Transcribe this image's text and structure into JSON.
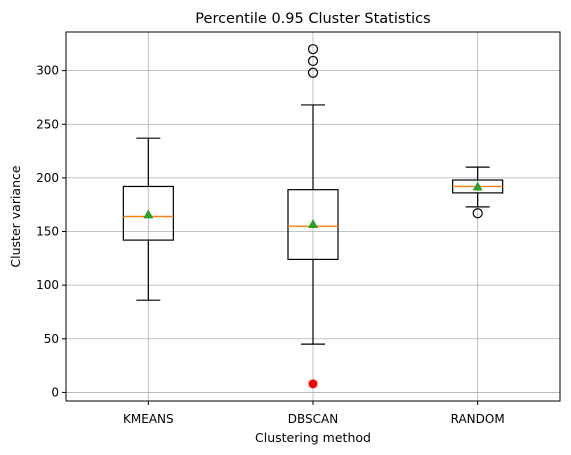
{
  "chart_data": {
    "type": "box",
    "title": "Percentile 0.95 Cluster Statistics",
    "xlabel": "Clustering method",
    "ylabel": "Cluster variance",
    "ylim": [
      -8,
      336
    ],
    "yticks": [
      0,
      50,
      100,
      150,
      200,
      250,
      300
    ],
    "grid": true,
    "colors": {
      "median": "#ff7f0e",
      "mean_marker": "#2ca02c",
      "special_point": "#ff0000"
    },
    "categories": [
      "KMEANS",
      "DBSCAN",
      "RANDOM"
    ],
    "boxes": [
      {
        "label": "KMEANS",
        "whisker_low": 86,
        "q1": 142,
        "median": 164,
        "q3": 192,
        "whisker_high": 237,
        "mean": 166,
        "fliers": []
      },
      {
        "label": "DBSCAN",
        "whisker_low": 45,
        "q1": 124,
        "median": 155,
        "q3": 189,
        "whisker_high": 268,
        "mean": 157,
        "fliers": [
          298,
          309,
          320
        ]
      },
      {
        "label": "RANDOM",
        "whisker_low": 173,
        "q1": 186,
        "median": 192,
        "q3": 198,
        "whisker_high": 210,
        "mean": 192,
        "fliers": [
          167
        ]
      }
    ],
    "special_points": [
      {
        "category": "DBSCAN",
        "value": 8,
        "color": "#ff0000"
      }
    ]
  }
}
